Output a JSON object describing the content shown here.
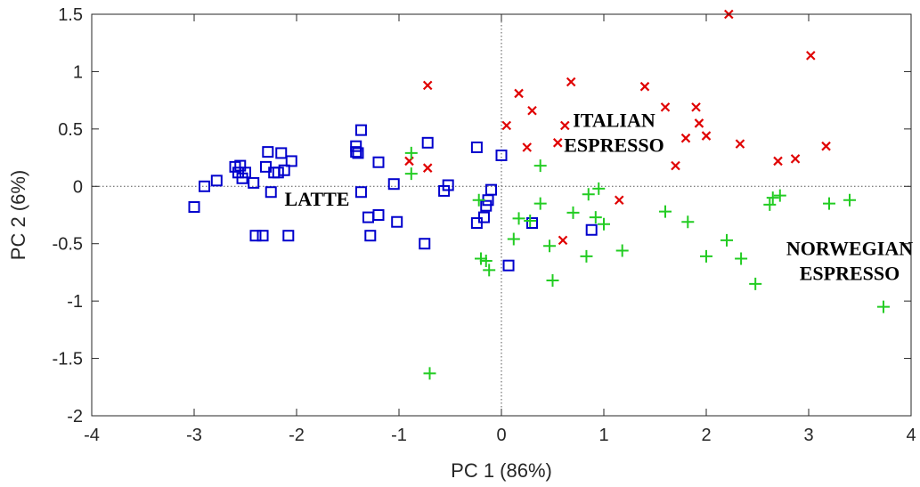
{
  "chart_data": {
    "type": "scatter",
    "xlabel": "PC 1 (86%)",
    "ylabel": "PC 2 (6%)",
    "xlim": [
      -4,
      4
    ],
    "ylim": [
      -2,
      1.5
    ],
    "xticks": [
      -4,
      -3,
      -2,
      -1,
      0,
      1,
      2,
      3,
      4
    ],
    "yticks": [
      -2,
      -1.5,
      -1,
      -0.5,
      0,
      0.5,
      1,
      1.5
    ],
    "xtick_labels": [
      "-4",
      "-3",
      "-2",
      "-1",
      "0",
      "1",
      "2",
      "3",
      "4"
    ],
    "ytick_labels": [
      "-2",
      "-1.5",
      "-1",
      "-0.5",
      "0",
      "0.5",
      "1",
      "1.5"
    ],
    "grid": false,
    "zero_lines": true,
    "annotations": [
      {
        "lines": [
          "LATTE"
        ],
        "x": -1.8,
        "y": -0.17,
        "align": "middle"
      },
      {
        "lines": [
          "ITALIAN",
          "ESPRESSO"
        ],
        "x": 1.1,
        "y": 0.52,
        "align": "middle"
      },
      {
        "lines": [
          "NORWEGIAN",
          "ESPRESSO"
        ],
        "x": 3.4,
        "y": -0.6,
        "align": "middle"
      }
    ],
    "series": [
      {
        "marker": "square",
        "color": "#0000cc",
        "points": [
          [
            -3.0,
            -0.18
          ],
          [
            -2.9,
            0.0
          ],
          [
            -2.78,
            0.05
          ],
          [
            -2.6,
            0.17
          ],
          [
            -2.57,
            0.12
          ],
          [
            -2.55,
            0.18
          ],
          [
            -2.53,
            0.07
          ],
          [
            -2.5,
            0.12
          ],
          [
            -2.42,
            0.03
          ],
          [
            -2.4,
            -0.43
          ],
          [
            -2.33,
            -0.43
          ],
          [
            -2.3,
            0.17
          ],
          [
            -2.28,
            0.3
          ],
          [
            -2.25,
            -0.05
          ],
          [
            -2.22,
            0.12
          ],
          [
            -2.18,
            0.12
          ],
          [
            -2.15,
            0.29
          ],
          [
            -2.12,
            0.14
          ],
          [
            -2.08,
            -0.43
          ],
          [
            -2.05,
            0.22
          ],
          [
            -1.42,
            0.35
          ],
          [
            -1.42,
            0.3
          ],
          [
            -1.4,
            0.29
          ],
          [
            -1.37,
            0.49
          ],
          [
            -1.37,
            -0.05
          ],
          [
            -1.3,
            -0.27
          ],
          [
            -1.28,
            -0.43
          ],
          [
            -1.2,
            0.21
          ],
          [
            -1.2,
            -0.25
          ],
          [
            -1.05,
            0.02
          ],
          [
            -1.02,
            -0.31
          ],
          [
            -0.75,
            -0.5
          ],
          [
            -0.72,
            0.38
          ],
          [
            -0.56,
            -0.04
          ],
          [
            -0.52,
            0.01
          ],
          [
            -0.24,
            0.34
          ],
          [
            -0.24,
            -0.32
          ],
          [
            -0.17,
            -0.27
          ],
          [
            -0.15,
            -0.17
          ],
          [
            -0.13,
            -0.12
          ],
          [
            -0.1,
            -0.03
          ],
          [
            0.0,
            0.27
          ],
          [
            0.07,
            -0.69
          ],
          [
            0.3,
            -0.32
          ],
          [
            0.88,
            -0.38
          ]
        ]
      },
      {
        "marker": "cross",
        "color": "#e00000",
        "points": [
          [
            -0.9,
            0.22
          ],
          [
            -0.72,
            0.88
          ],
          [
            -0.72,
            0.16
          ],
          [
            0.05,
            0.53
          ],
          [
            0.17,
            0.81
          ],
          [
            0.25,
            0.34
          ],
          [
            0.3,
            0.66
          ],
          [
            0.55,
            0.38
          ],
          [
            0.6,
            -0.47
          ],
          [
            0.62,
            0.53
          ],
          [
            0.68,
            0.91
          ],
          [
            1.15,
            -0.12
          ],
          [
            1.4,
            0.87
          ],
          [
            1.6,
            0.69
          ],
          [
            1.7,
            0.18
          ],
          [
            1.8,
            0.42
          ],
          [
            1.9,
            0.69
          ],
          [
            1.93,
            0.55
          ],
          [
            2.0,
            0.44
          ],
          [
            2.22,
            1.5
          ],
          [
            2.33,
            0.37
          ],
          [
            2.7,
            0.22
          ],
          [
            2.87,
            0.24
          ],
          [
            3.02,
            1.14
          ],
          [
            3.17,
            0.35
          ]
        ]
      },
      {
        "marker": "plus",
        "color": "#22cc22",
        "points": [
          [
            -0.88,
            0.29
          ],
          [
            -0.88,
            0.11
          ],
          [
            -0.7,
            -1.63
          ],
          [
            -0.22,
            -0.12
          ],
          [
            -0.2,
            -0.63
          ],
          [
            -0.15,
            -0.65
          ],
          [
            -0.12,
            -0.73
          ],
          [
            0.12,
            -0.46
          ],
          [
            0.17,
            -0.28
          ],
          [
            0.28,
            -0.3
          ],
          [
            0.38,
            0.18
          ],
          [
            0.38,
            -0.15
          ],
          [
            0.47,
            -0.52
          ],
          [
            0.5,
            -0.82
          ],
          [
            0.7,
            -0.23
          ],
          [
            0.83,
            -0.61
          ],
          [
            0.85,
            -0.07
          ],
          [
            0.92,
            -0.27
          ],
          [
            0.95,
            -0.02
          ],
          [
            1.0,
            -0.33
          ],
          [
            1.18,
            -0.56
          ],
          [
            1.6,
            -0.22
          ],
          [
            1.82,
            -0.31
          ],
          [
            2.0,
            -0.61
          ],
          [
            2.2,
            -0.47
          ],
          [
            2.34,
            -0.63
          ],
          [
            2.48,
            -0.85
          ],
          [
            2.62,
            -0.16
          ],
          [
            2.65,
            -0.1
          ],
          [
            2.72,
            -0.08
          ],
          [
            3.2,
            -0.15
          ],
          [
            3.4,
            -0.12
          ],
          [
            3.73,
            -1.05
          ]
        ]
      }
    ]
  }
}
